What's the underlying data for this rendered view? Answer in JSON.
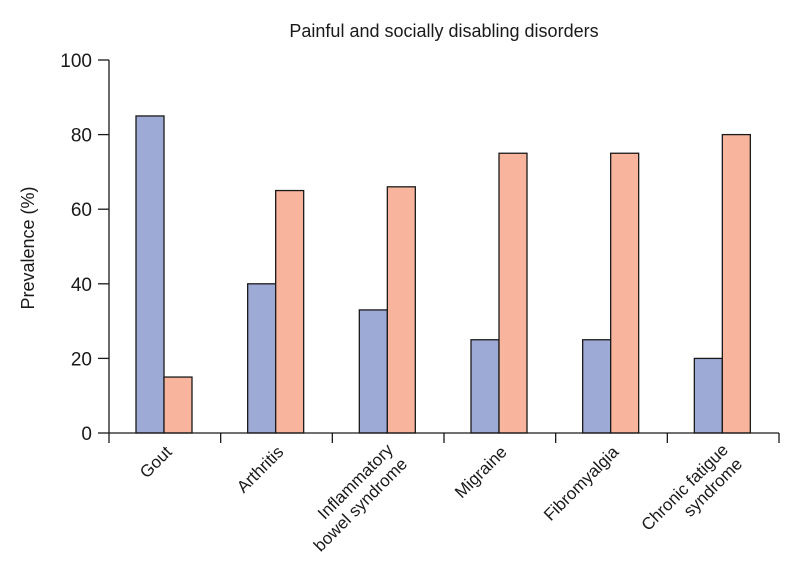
{
  "chart_data": {
    "type": "bar",
    "title": "Painful and socially disabling disorders",
    "xlabel": "",
    "ylabel": "Prevalence (%)",
    "ylim": [
      0,
      100
    ],
    "yticks": [
      "0",
      "20",
      "40",
      "60",
      "80",
      "100"
    ],
    "grid": false,
    "legend": "none",
    "categories": [
      [
        "Gout"
      ],
      [
        "Arthritis"
      ],
      [
        "Inflammatory",
        "bowel syndrome"
      ],
      [
        "Migraine"
      ],
      [
        "Fibromyalgia"
      ],
      [
        "Chronic fatigue",
        "syndrome"
      ]
    ],
    "series": [
      {
        "color": "#9eaad6",
        "values": [
          85,
          40,
          33,
          25,
          25,
          20
        ]
      },
      {
        "color": "#f8b49c",
        "values": [
          15,
          65,
          66,
          75,
          75,
          80
        ]
      }
    ]
  }
}
